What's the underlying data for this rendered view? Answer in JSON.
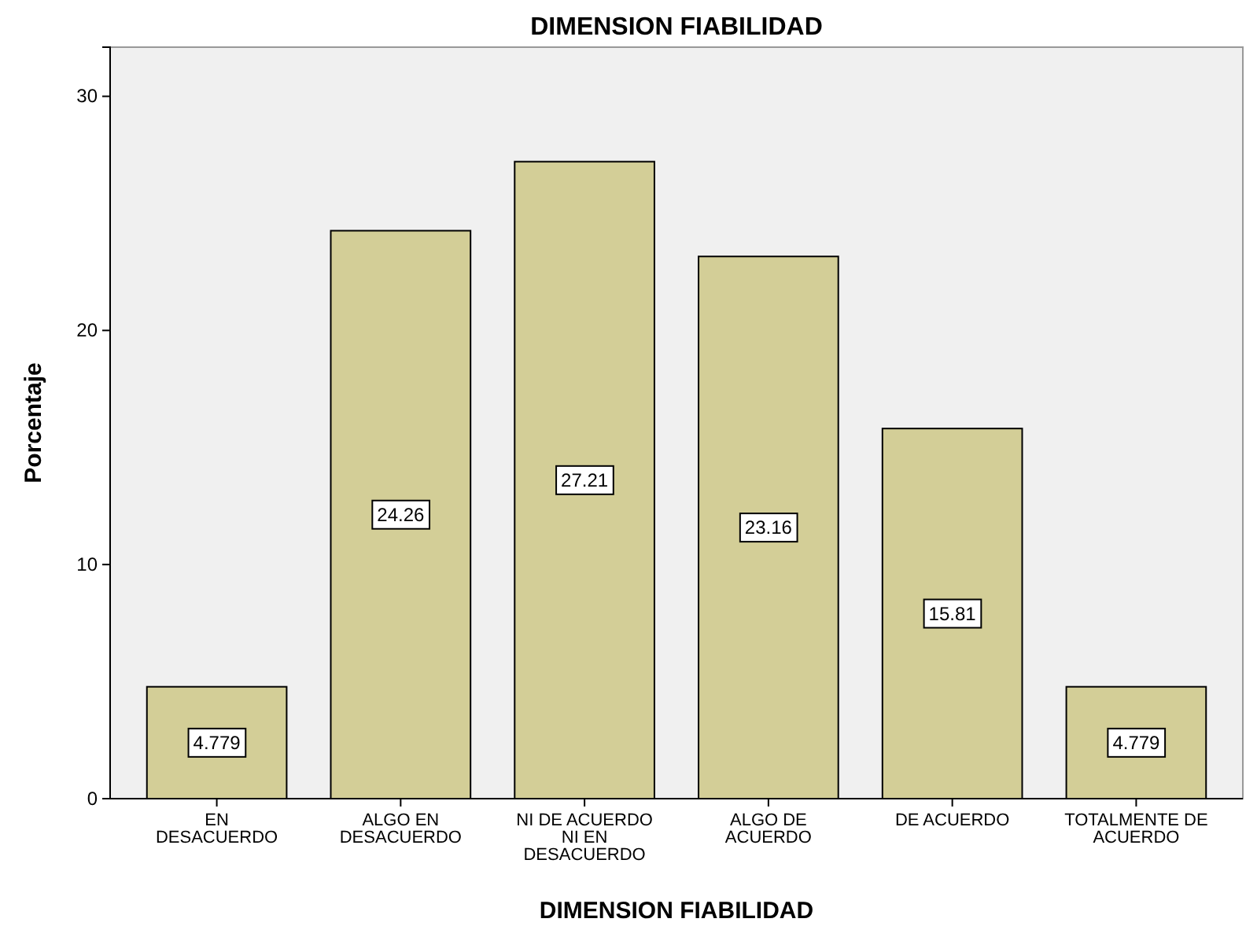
{
  "chart_data": {
    "type": "bar",
    "title": "DIMENSION FIABILIDAD",
    "xlabel": "DIMENSION FIABILIDAD",
    "ylabel": "Porcentaje",
    "categories": [
      "EN DESACUERDO",
      "ALGO EN DESACUERDO",
      "NI DE ACUERDO NI EN DESACUERDO",
      "ALGO DE ACUERDO",
      "DE ACUERDO",
      "TOTALMENTE DE ACUERDO"
    ],
    "values": [
      4.779,
      24.26,
      27.21,
      23.16,
      15.81,
      4.779
    ],
    "color": "#d3ce97",
    "ylim": [
      0,
      32.1
    ],
    "yticks": [
      0,
      10,
      20,
      30
    ],
    "data_labels": true
  }
}
